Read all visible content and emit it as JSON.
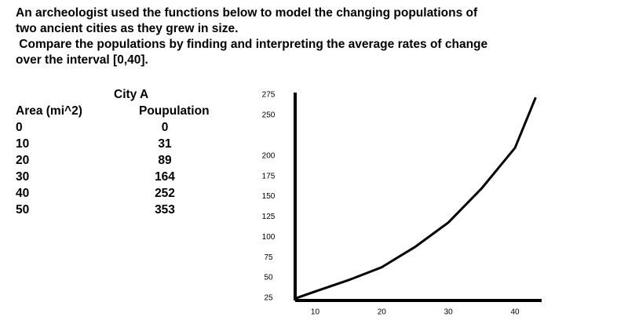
{
  "question": {
    "lines": [
      "An archeologist used the functions below to model the changing populations of",
      "two ancient cities as they grew in size.",
      " Compare the populations by finding and interpreting the average rates of change",
      "over the interval [0,40]."
    ]
  },
  "table": {
    "title": "City A",
    "headers": [
      "Area (mi^2)",
      "Poupulation"
    ],
    "rows": [
      [
        "0",
        "0"
      ],
      [
        "10",
        "31"
      ],
      [
        "20",
        "89"
      ],
      [
        "30",
        "164"
      ],
      [
        "40",
        "252"
      ],
      [
        "50",
        "353"
      ]
    ]
  },
  "chart_data": {
    "type": "line",
    "color": "#000000",
    "x": [
      7.2,
      10,
      15,
      20,
      25,
      30,
      35,
      40,
      43.1
    ],
    "values": [
      25,
      33,
      47,
      63,
      88,
      118,
      160,
      210,
      272
    ],
    "xlim": [
      7,
      44
    ],
    "ylim": [
      22,
      278
    ],
    "xticks": [
      10,
      20,
      30,
      40
    ],
    "yticks": [
      25,
      50,
      75,
      100,
      125,
      150,
      175,
      200,
      250,
      275
    ]
  }
}
